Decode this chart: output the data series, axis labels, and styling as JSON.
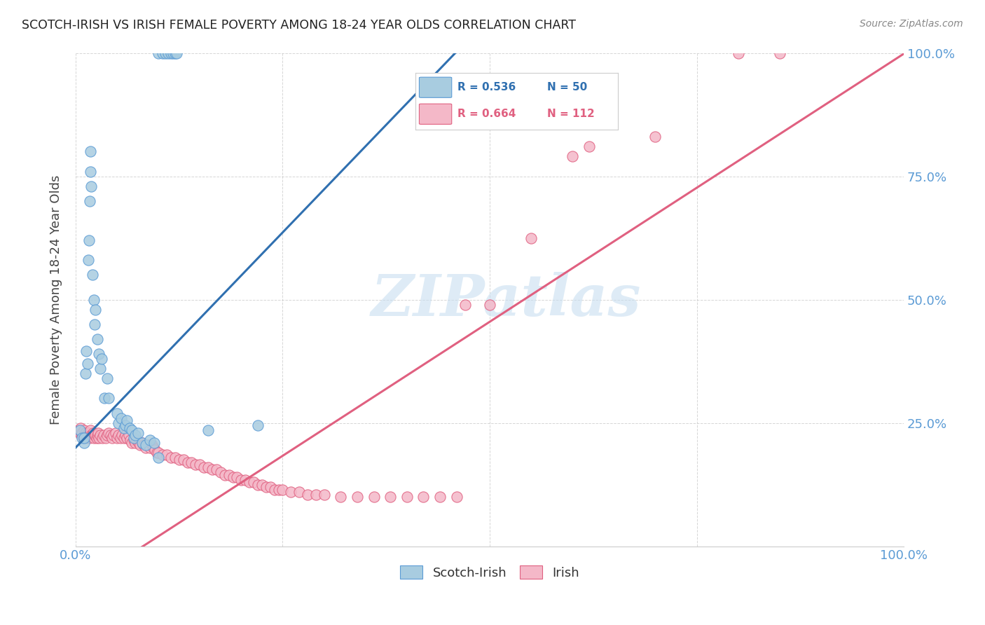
{
  "title": "SCOTCH-IRISH VS IRISH FEMALE POVERTY AMONG 18-24 YEAR OLDS CORRELATION CHART",
  "source": "Source: ZipAtlas.com",
  "ylabel": "Female Poverty Among 18-24 Year Olds",
  "xlim": [
    0,
    1
  ],
  "ylim": [
    0,
    1
  ],
  "watermark_text": "ZIPatlas",
  "scotch_irish_R": 0.536,
  "scotch_irish_N": 50,
  "irish_R": 0.664,
  "irish_N": 112,
  "scotch_irish_color": "#a8cce0",
  "scotch_irish_edge_color": "#5b9bd5",
  "irish_color": "#f4b8c8",
  "irish_edge_color": "#e06080",
  "scotch_irish_line_color": "#3070b0",
  "irish_line_color": "#e06080",
  "background_color": "#ffffff",
  "grid_color": "#cccccc",
  "tick_color": "#5b9bd5",
  "axis_label_color": "#444444",
  "title_color": "#222222",
  "source_color": "#888888",
  "scotch_irish_line": [
    [
      0.0,
      0.2
    ],
    [
      0.47,
      1.02
    ]
  ],
  "irish_line": [
    [
      -0.02,
      -0.11
    ],
    [
      1.02,
      1.02
    ]
  ],
  "scotch_irish_points": [
    [
      0.005,
      0.235
    ],
    [
      0.008,
      0.22
    ],
    [
      0.01,
      0.21
    ],
    [
      0.01,
      0.22
    ],
    [
      0.012,
      0.35
    ],
    [
      0.013,
      0.395
    ],
    [
      0.014,
      0.37
    ],
    [
      0.015,
      0.58
    ],
    [
      0.016,
      0.62
    ],
    [
      0.017,
      0.7
    ],
    [
      0.018,
      0.76
    ],
    [
      0.018,
      0.8
    ],
    [
      0.019,
      0.73
    ],
    [
      0.02,
      0.55
    ],
    [
      0.022,
      0.5
    ],
    [
      0.023,
      0.45
    ],
    [
      0.024,
      0.48
    ],
    [
      0.026,
      0.42
    ],
    [
      0.028,
      0.39
    ],
    [
      0.03,
      0.36
    ],
    [
      0.031,
      0.38
    ],
    [
      0.035,
      0.3
    ],
    [
      0.038,
      0.34
    ],
    [
      0.04,
      0.3
    ],
    [
      0.05,
      0.27
    ],
    [
      0.052,
      0.25
    ],
    [
      0.055,
      0.26
    ],
    [
      0.058,
      0.24
    ],
    [
      0.06,
      0.245
    ],
    [
      0.062,
      0.255
    ],
    [
      0.065,
      0.24
    ],
    [
      0.068,
      0.235
    ],
    [
      0.07,
      0.22
    ],
    [
      0.072,
      0.225
    ],
    [
      0.075,
      0.23
    ],
    [
      0.08,
      0.21
    ],
    [
      0.085,
      0.205
    ],
    [
      0.09,
      0.215
    ],
    [
      0.095,
      0.21
    ],
    [
      0.1,
      0.18
    ],
    [
      0.1,
      1.0
    ],
    [
      0.105,
      1.0
    ],
    [
      0.108,
      1.0
    ],
    [
      0.112,
      1.0
    ],
    [
      0.115,
      1.0
    ],
    [
      0.118,
      1.0
    ],
    [
      0.12,
      1.0
    ],
    [
      0.122,
      1.0
    ],
    [
      0.16,
      0.235
    ],
    [
      0.22,
      0.245
    ]
  ],
  "irish_points": [
    [
      0.003,
      0.235
    ],
    [
      0.005,
      0.23
    ],
    [
      0.006,
      0.24
    ],
    [
      0.007,
      0.225
    ],
    [
      0.008,
      0.23
    ],
    [
      0.009,
      0.22
    ],
    [
      0.01,
      0.235
    ],
    [
      0.011,
      0.225
    ],
    [
      0.012,
      0.23
    ],
    [
      0.013,
      0.225
    ],
    [
      0.014,
      0.22
    ],
    [
      0.015,
      0.23
    ],
    [
      0.016,
      0.225
    ],
    [
      0.017,
      0.22
    ],
    [
      0.018,
      0.235
    ],
    [
      0.019,
      0.225
    ],
    [
      0.02,
      0.225
    ],
    [
      0.021,
      0.23
    ],
    [
      0.022,
      0.22
    ],
    [
      0.023,
      0.225
    ],
    [
      0.024,
      0.225
    ],
    [
      0.025,
      0.22
    ],
    [
      0.026,
      0.225
    ],
    [
      0.027,
      0.23
    ],
    [
      0.028,
      0.22
    ],
    [
      0.03,
      0.225
    ],
    [
      0.032,
      0.22
    ],
    [
      0.034,
      0.225
    ],
    [
      0.036,
      0.22
    ],
    [
      0.038,
      0.225
    ],
    [
      0.04,
      0.23
    ],
    [
      0.042,
      0.225
    ],
    [
      0.044,
      0.22
    ],
    [
      0.046,
      0.225
    ],
    [
      0.048,
      0.23
    ],
    [
      0.05,
      0.22
    ],
    [
      0.052,
      0.225
    ],
    [
      0.054,
      0.22
    ],
    [
      0.056,
      0.225
    ],
    [
      0.058,
      0.22
    ],
    [
      0.06,
      0.225
    ],
    [
      0.062,
      0.22
    ],
    [
      0.064,
      0.225
    ],
    [
      0.066,
      0.215
    ],
    [
      0.068,
      0.21
    ],
    [
      0.07,
      0.215
    ],
    [
      0.072,
      0.21
    ],
    [
      0.074,
      0.215
    ],
    [
      0.076,
      0.21
    ],
    [
      0.078,
      0.205
    ],
    [
      0.08,
      0.21
    ],
    [
      0.082,
      0.205
    ],
    [
      0.085,
      0.2
    ],
    [
      0.088,
      0.205
    ],
    [
      0.09,
      0.2
    ],
    [
      0.092,
      0.205
    ],
    [
      0.094,
      0.2
    ],
    [
      0.096,
      0.195
    ],
    [
      0.098,
      0.19
    ],
    [
      0.1,
      0.19
    ],
    [
      0.105,
      0.185
    ],
    [
      0.11,
      0.185
    ],
    [
      0.115,
      0.18
    ],
    [
      0.12,
      0.18
    ],
    [
      0.125,
      0.175
    ],
    [
      0.13,
      0.175
    ],
    [
      0.135,
      0.17
    ],
    [
      0.14,
      0.17
    ],
    [
      0.145,
      0.165
    ],
    [
      0.15,
      0.165
    ],
    [
      0.155,
      0.16
    ],
    [
      0.16,
      0.16
    ],
    [
      0.165,
      0.155
    ],
    [
      0.17,
      0.155
    ],
    [
      0.175,
      0.15
    ],
    [
      0.18,
      0.145
    ],
    [
      0.185,
      0.145
    ],
    [
      0.19,
      0.14
    ],
    [
      0.195,
      0.14
    ],
    [
      0.2,
      0.135
    ],
    [
      0.205,
      0.135
    ],
    [
      0.21,
      0.13
    ],
    [
      0.215,
      0.13
    ],
    [
      0.22,
      0.125
    ],
    [
      0.225,
      0.125
    ],
    [
      0.23,
      0.12
    ],
    [
      0.235,
      0.12
    ],
    [
      0.24,
      0.115
    ],
    [
      0.245,
      0.115
    ],
    [
      0.25,
      0.115
    ],
    [
      0.26,
      0.11
    ],
    [
      0.27,
      0.11
    ],
    [
      0.28,
      0.105
    ],
    [
      0.29,
      0.105
    ],
    [
      0.3,
      0.105
    ],
    [
      0.32,
      0.1
    ],
    [
      0.34,
      0.1
    ],
    [
      0.36,
      0.1
    ],
    [
      0.38,
      0.1
    ],
    [
      0.4,
      0.1
    ],
    [
      0.42,
      0.1
    ],
    [
      0.44,
      0.1
    ],
    [
      0.46,
      0.1
    ],
    [
      0.47,
      0.49
    ],
    [
      0.5,
      0.49
    ],
    [
      0.55,
      0.625
    ],
    [
      0.6,
      0.79
    ],
    [
      0.62,
      0.81
    ],
    [
      0.7,
      0.83
    ],
    [
      0.8,
      1.0
    ],
    [
      0.85,
      1.0
    ]
  ]
}
